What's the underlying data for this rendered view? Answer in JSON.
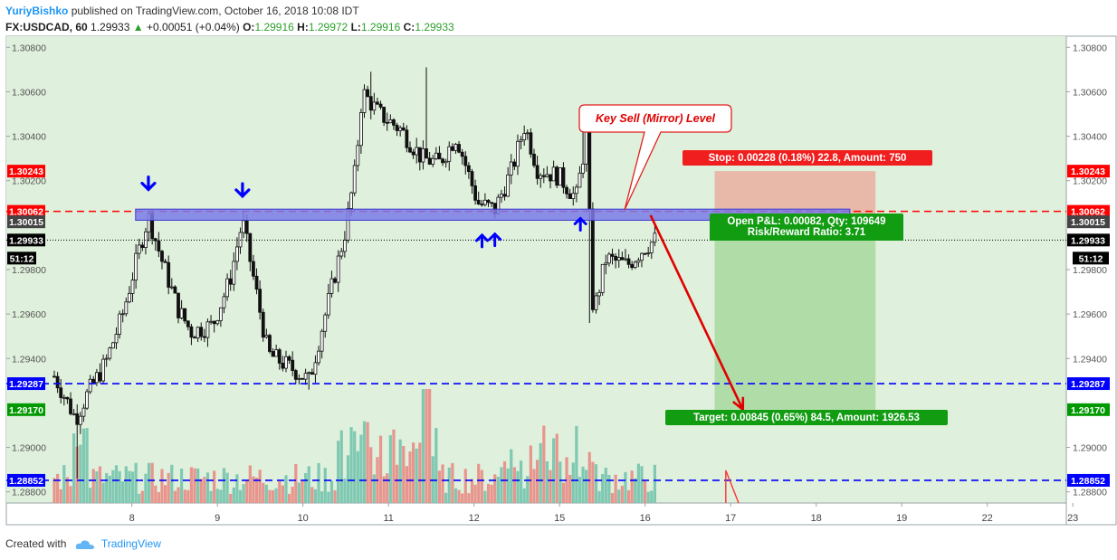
{
  "header": {
    "author": "YuriyBishko",
    "published": "published on TradingView.com, October 16, 2018 10:08 IDT",
    "symbol": "FX:USDCAD, 60",
    "last": "1.29933",
    "change_arrow": "▲",
    "change": "+0.00051 (+0.04%)",
    "open_label": "O:",
    "open": "1.29916",
    "high_label": "H:",
    "high": "1.29972",
    "low_label": "L:",
    "low": "1.29916",
    "close_label": "C:",
    "close": "1.29933"
  },
  "footer": {
    "created_with": "Created with",
    "brand": "TradingView",
    "logo_icon": "cloud-icon"
  },
  "colors": {
    "plot_bg": "#dff0dc",
    "red": "#ff0000",
    "blue": "#0000ff",
    "green": "#009900",
    "zone": "#7b7be8",
    "stop_zone": "#e8b8a8",
    "target_zone": "#b0dca8",
    "arrow_blue": "#0000ff",
    "vol_up": "#7fc8b2",
    "vol_down": "#e8958d"
  },
  "chart_data": {
    "type": "candlestick",
    "y_range": [
      1.2875,
      1.3085
    ],
    "x_range": [
      7.4,
      23.2
    ],
    "y_ticks": [
      "1.30800",
      "1.30600",
      "1.30400",
      "1.30200",
      "1.29800",
      "1.29600",
      "1.29400",
      "1.29000",
      "1.28800"
    ],
    "x_ticks": [
      {
        "x": 8,
        "label": "8"
      },
      {
        "x": 9,
        "label": "9"
      },
      {
        "x": 10,
        "label": "10"
      },
      {
        "x": 11,
        "label": "11"
      },
      {
        "x": 12,
        "label": "12"
      },
      {
        "x": 13,
        "label": "15"
      },
      {
        "x": 14,
        "label": "16"
      },
      {
        "x": 15,
        "label": "17"
      },
      {
        "x": 16,
        "label": "18"
      },
      {
        "x": 17,
        "label": "19"
      },
      {
        "x": 18,
        "label": "22"
      },
      {
        "x": 19,
        "label": "23"
      }
    ],
    "price_axis_labels": [
      {
        "value": 1.30243,
        "label": "1.30243",
        "color": "#ff0000"
      },
      {
        "value": 1.30062,
        "label": "1.30062",
        "color": "#ff0000"
      },
      {
        "value": 1.30015,
        "label": "1.30015",
        "color": "#444444"
      },
      {
        "value": 1.29933,
        "label": "1.29933",
        "color": "#000000"
      },
      {
        "value": 1.29287,
        "label": "1.29287",
        "color": "#0000ff"
      },
      {
        "value": 1.2917,
        "label": "1.29170",
        "color": "#009900"
      },
      {
        "value": 1.28852,
        "label": "1.28852",
        "color": "#0000ff"
      }
    ],
    "countdown_label": "51:12",
    "h_lines": [
      {
        "value": 1.30062,
        "color": "#ff0000",
        "style": "dashed"
      },
      {
        "value": 1.29933,
        "color": "#000000",
        "style": "dotted"
      },
      {
        "value": 1.29287,
        "color": "#0000ff",
        "style": "dashed"
      },
      {
        "value": 1.28852,
        "color": "#0000ff",
        "style": "dashed"
      }
    ],
    "zone": {
      "x0": 8.35,
      "x1": 16.7,
      "y0": 1.30022,
      "y1": 1.30072
    },
    "position": {
      "x0": 15.12,
      "x1": 17.0,
      "entry": 1.30015,
      "stop": 1.30243,
      "target": 1.2917,
      "stop_label": "Stop: 0.00228 (0.18%) 22.8, Amount: 750",
      "pnl_label": "Open P&L: 0.00082, Qty: 109649",
      "rr_label": "Risk/Reward Ratio: 3.71",
      "target_label": "Target: 0.00845 (0.65%) 84.5, Amount: 1926.53"
    },
    "annotation": "Key Sell (Mirror) Level",
    "trend_arrow": {
      "from": [
        14.37,
        1.30045
      ],
      "to": [
        15.45,
        1.2917
      ]
    },
    "down_arrows": [
      [
        8.5,
        1.3016
      ],
      [
        9.6,
        1.3013
      ]
    ],
    "up_arrows": [
      [
        12.4,
        1.29955
      ],
      [
        12.55,
        1.2996
      ],
      [
        13.55,
        1.3003
      ]
    ],
    "anchors": [
      {
        "x": 7.4,
        "p": 1.2932
      },
      {
        "x": 7.65,
        "p": 1.2913
      },
      {
        "x": 7.8,
        "p": 1.2925
      },
      {
        "x": 8.0,
        "p": 1.2938
      },
      {
        "x": 8.2,
        "p": 1.296
      },
      {
        "x": 8.4,
        "p": 1.299
      },
      {
        "x": 8.5,
        "p": 1.3004
      },
      {
        "x": 8.65,
        "p": 1.2985
      },
      {
        "x": 8.85,
        "p": 1.2962
      },
      {
        "x": 9.0,
        "p": 1.2952
      },
      {
        "x": 9.25,
        "p": 1.2955
      },
      {
        "x": 9.45,
        "p": 1.2975
      },
      {
        "x": 9.6,
        "p": 1.3002
      },
      {
        "x": 9.75,
        "p": 1.2972
      },
      {
        "x": 9.9,
        "p": 1.2942
      },
      {
        "x": 10.2,
        "p": 1.2935
      },
      {
        "x": 10.38,
        "p": 1.293
      },
      {
        "x": 10.6,
        "p": 1.2965
      },
      {
        "x": 10.8,
        "p": 1.2997
      },
      {
        "x": 10.92,
        "p": 1.3025
      },
      {
        "x": 11.0,
        "p": 1.306
      },
      {
        "x": 11.2,
        "p": 1.305
      },
      {
        "x": 11.45,
        "p": 1.3043
      },
      {
        "x": 11.7,
        "p": 1.303
      },
      {
        "x": 11.9,
        "p": 1.3028
      },
      {
        "x": 12.1,
        "p": 1.304
      },
      {
        "x": 12.35,
        "p": 1.301
      },
      {
        "x": 12.55,
        "p": 1.3007
      },
      {
        "x": 12.75,
        "p": 1.3025
      },
      {
        "x": 12.9,
        "p": 1.3045
      },
      {
        "x": 13.05,
        "p": 1.3025
      },
      {
        "x": 13.3,
        "p": 1.3022
      },
      {
        "x": 13.5,
        "p": 1.3012
      },
      {
        "x": 13.62,
        "p": 1.304
      },
      {
        "x": 13.7,
        "p": 1.296
      },
      {
        "x": 13.85,
        "p": 1.2985
      },
      {
        "x": 14.1,
        "p": 1.2982
      },
      {
        "x": 14.3,
        "p": 1.299
      },
      {
        "x": 14.42,
        "p": 1.29933
      }
    ],
    "spikes": [
      {
        "x": 7.68,
        "low": 1.2886
      },
      {
        "x": 10.38,
        "low": 1.2926
      },
      {
        "x": 11.75,
        "high": 1.3071
      },
      {
        "x": 11.1,
        "high": 1.3069
      },
      {
        "x": 13.58,
        "high": 1.3042
      },
      {
        "x": 13.64,
        "low": 1.2956
      }
    ],
    "volume": {
      "seed": 7,
      "max_px": 126,
      "base_px": 556
    }
  }
}
